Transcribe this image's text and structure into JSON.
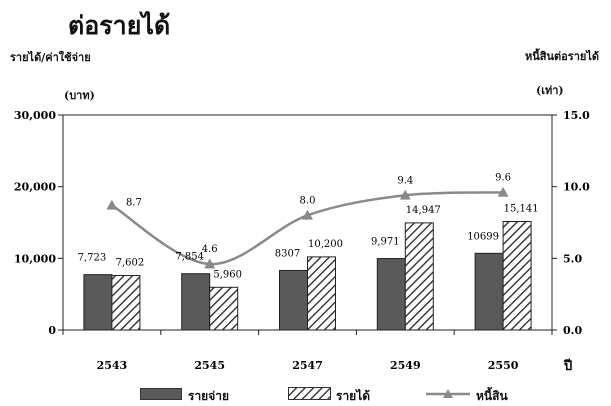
{
  "chart_data": {
    "type": "bar",
    "title": "ต่อรายได้",
    "ylabel_left": "รายได้/ค่าใช้จ่าย",
    "ylabel_left_unit": "(บาท)",
    "ylabel_right": "หนี้สินต่อรายได้",
    "ylabel_right_unit": "(เท่า)",
    "xlabel": "ปี",
    "categories": [
      "2543",
      "2545",
      "2547",
      "2549",
      "2550"
    ],
    "left_ticks": [
      "0",
      "10,000",
      "20,000",
      "30,000"
    ],
    "right_ticks": [
      "0.0",
      "5.0",
      "10.0",
      "15.0"
    ],
    "ylim_left": [
      0,
      30000
    ],
    "ylim_right": [
      0,
      15
    ],
    "grid": false,
    "legend_position": "bottom",
    "series": [
      {
        "name": "รายจ่าย",
        "type": "bar",
        "axis": "left",
        "values": [
          7723,
          7854,
          8307,
          9971,
          10699
        ],
        "labels": [
          "7,723",
          "7,854",
          "8307",
          "9,971",
          "10699"
        ],
        "color": "#5a5a5a"
      },
      {
        "name": "รายได้",
        "type": "bar",
        "axis": "left",
        "pattern": "hatch",
        "values": [
          7602,
          5960,
          10200,
          14947,
          15141
        ],
        "labels": [
          "7,602",
          "5,960",
          "10,200",
          "14,947",
          "15,141"
        ],
        "color": "#ffffff"
      },
      {
        "name": "หนี้สิน",
        "type": "line",
        "axis": "right",
        "values": [
          8.7,
          4.6,
          8.0,
          9.4,
          9.6
        ],
        "labels": [
          "8.7",
          "4.6",
          "8.0",
          "9.4",
          "9.6"
        ],
        "color": "#8a8a8a"
      }
    ]
  }
}
